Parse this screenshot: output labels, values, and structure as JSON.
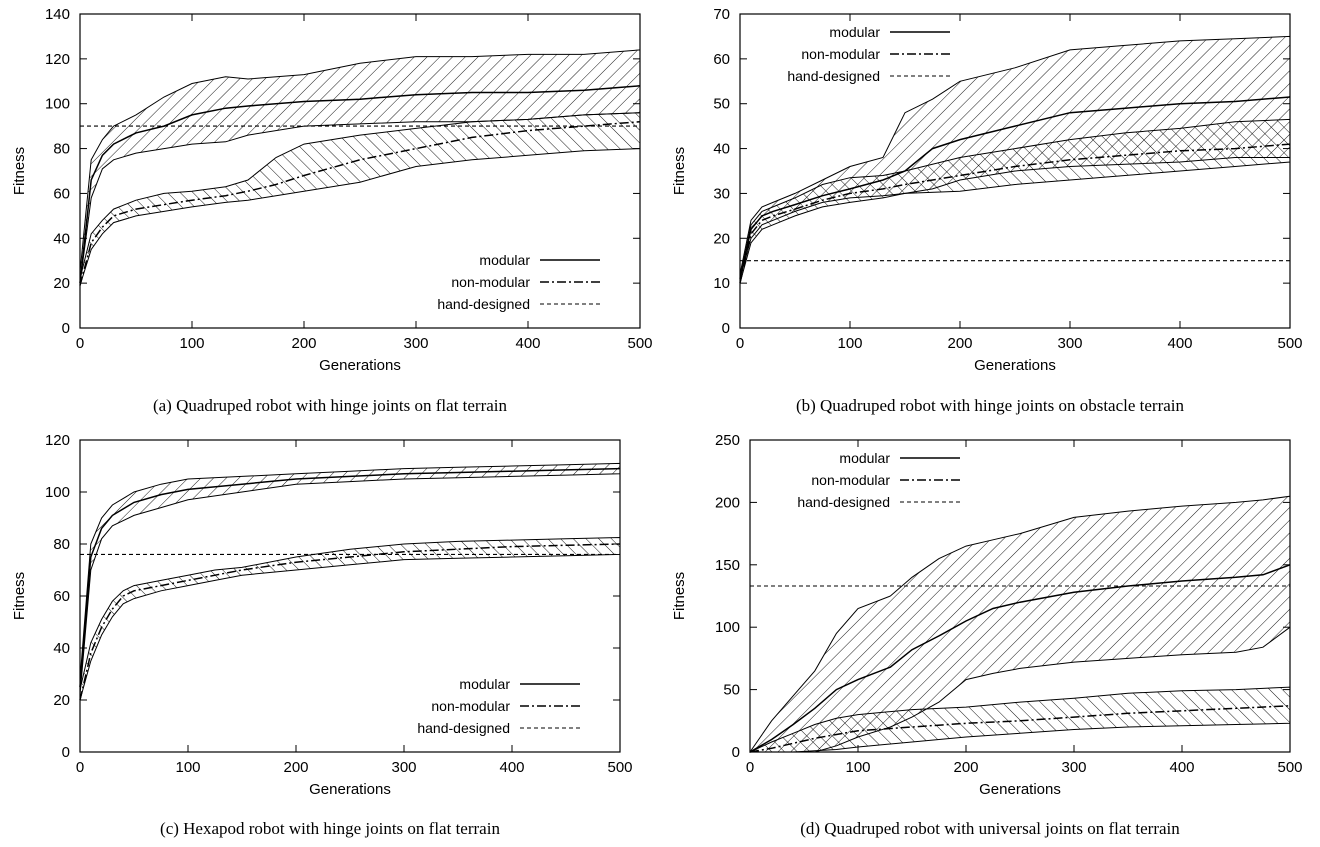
{
  "chart_data": [
    {
      "type": "line",
      "caption": "(a) Quadruped robot with hinge joints on flat terrain",
      "xlabel": "Generations",
      "ylabel": "Fitness",
      "xlim": [
        0,
        500
      ],
      "ylim": [
        0,
        140
      ],
      "xticks": [
        0,
        100,
        200,
        300,
        400,
        500
      ],
      "yticks": [
        0,
        20,
        40,
        60,
        80,
        100,
        120,
        140
      ],
      "legend_position": "bottom-right",
      "legend": [
        "modular",
        "non-modular",
        "hand-designed"
      ],
      "series": [
        {
          "name": "modular",
          "style": "solid",
          "x": [
            0,
            10,
            20,
            30,
            50,
            75,
            100,
            130,
            150,
            200,
            250,
            300,
            350,
            400,
            450,
            500
          ],
          "y": [
            20,
            66,
            77,
            82,
            87,
            90,
            95,
            98,
            99,
            101,
            102,
            104,
            105,
            105,
            106,
            108
          ],
          "lower": [
            20,
            58,
            71,
            75,
            78,
            80,
            82,
            83,
            86,
            90,
            91,
            92,
            92,
            93,
            95,
            96
          ],
          "upper": [
            25,
            75,
            84,
            90,
            95,
            103,
            109,
            112,
            111,
            113,
            118,
            121,
            121,
            122,
            122,
            124
          ]
        },
        {
          "name": "non-modular",
          "style": "dash-dot",
          "x": [
            0,
            10,
            20,
            30,
            50,
            75,
            100,
            130,
            150,
            175,
            200,
            250,
            300,
            350,
            400,
            450,
            500
          ],
          "y": [
            19,
            38,
            45,
            50,
            53,
            55,
            57,
            59,
            61,
            64,
            68,
            75,
            80,
            85,
            88,
            90,
            92
          ],
          "lower": [
            19,
            35,
            42,
            47,
            50,
            52,
            54,
            56,
            57,
            59,
            61,
            65,
            72,
            75,
            77,
            79,
            80
          ],
          "upper": [
            22,
            42,
            48,
            53,
            57,
            60,
            61,
            63,
            66,
            76,
            82,
            86,
            89,
            92,
            93,
            95,
            96
          ]
        },
        {
          "name": "hand-designed",
          "style": "dashed",
          "x": [
            0,
            500
          ],
          "y": [
            90,
            90
          ]
        }
      ]
    },
    {
      "type": "line",
      "caption": "(b) Quadruped robot with hinge joints on obstacle terrain",
      "xlabel": "Generations",
      "ylabel": "Fitness",
      "xlim": [
        0,
        500
      ],
      "ylim": [
        0,
        70
      ],
      "xticks": [
        0,
        100,
        200,
        300,
        400,
        500
      ],
      "yticks": [
        0,
        10,
        20,
        30,
        40,
        50,
        60,
        70
      ],
      "legend_position": "top-left",
      "legend": [
        "modular",
        "non-modular",
        "hand-designed"
      ],
      "series": [
        {
          "name": "modular",
          "style": "solid",
          "x": [
            0,
            10,
            20,
            30,
            50,
            75,
            100,
            130,
            150,
            175,
            200,
            250,
            300,
            350,
            400,
            450,
            500
          ],
          "y": [
            11,
            22,
            25,
            26,
            27.5,
            29.5,
            31,
            33,
            35,
            40,
            42,
            45,
            48,
            49,
            50,
            50.5,
            51.5
          ],
          "lower": [
            11,
            20,
            23,
            24,
            26,
            28,
            29,
            29.5,
            30,
            31,
            33,
            35,
            36,
            36.5,
            37,
            38,
            38
          ],
          "upper": [
            12,
            24,
            27,
            28,
            30,
            33,
            36,
            38,
            48,
            51,
            55,
            58,
            62,
            63,
            64,
            64.5,
            65
          ]
        },
        {
          "name": "non-modular",
          "style": "dash-dot",
          "x": [
            0,
            10,
            20,
            30,
            50,
            75,
            100,
            130,
            150,
            200,
            250,
            300,
            350,
            400,
            450,
            500
          ],
          "y": [
            10,
            21,
            24,
            25,
            26.5,
            28.5,
            30,
            31,
            32,
            34,
            36,
            37.5,
            38.5,
            39.5,
            40,
            41
          ],
          "lower": [
            10,
            19,
            22,
            23,
            25,
            27,
            28,
            29,
            30,
            30.5,
            32,
            33,
            34,
            35,
            36,
            37
          ],
          "upper": [
            11,
            23,
            26,
            27,
            29,
            32,
            33.5,
            34,
            35,
            38,
            40,
            42,
            43.5,
            44.5,
            46,
            46.5
          ]
        },
        {
          "name": "hand-designed",
          "style": "dashed",
          "x": [
            0,
            500
          ],
          "y": [
            15,
            15
          ]
        }
      ]
    },
    {
      "type": "line",
      "caption": "(c) Hexapod robot with hinge joints on flat terrain",
      "xlabel": "Generations",
      "ylabel": "Fitness",
      "xlim": [
        0,
        500
      ],
      "ylim": [
        0,
        120
      ],
      "xticks": [
        0,
        100,
        200,
        300,
        400,
        500
      ],
      "yticks": [
        0,
        20,
        40,
        60,
        80,
        100,
        120
      ],
      "legend_position": "bottom-right",
      "legend": [
        "modular",
        "non-modular",
        "hand-designed"
      ],
      "series": [
        {
          "name": "modular",
          "style": "solid",
          "x": [
            0,
            10,
            20,
            30,
            50,
            75,
            100,
            150,
            200,
            250,
            300,
            350,
            400,
            450,
            500
          ],
          "y": [
            25,
            75,
            86,
            91,
            96,
            99,
            101,
            103,
            105,
            106,
            107,
            107.5,
            108,
            108.5,
            109
          ],
          "lower": [
            22,
            70,
            82,
            87,
            91,
            94,
            97,
            100,
            103,
            104,
            105,
            105.5,
            106,
            106.5,
            107
          ],
          "upper": [
            28,
            80,
            90,
            95,
            100,
            103,
            105,
            106,
            107,
            108,
            109,
            109.5,
            110,
            110.5,
            111
          ]
        },
        {
          "name": "non-modular",
          "style": "dash-dot",
          "x": [
            0,
            10,
            20,
            30,
            40,
            50,
            75,
            100,
            125,
            150,
            200,
            250,
            300,
            350,
            400,
            450,
            500
          ],
          "y": [
            20,
            38,
            48,
            55,
            60,
            62,
            64,
            66,
            68,
            70,
            73,
            75,
            77,
            78,
            79,
            79.5,
            80
          ],
          "lower": [
            20,
            35,
            45,
            52,
            57,
            59,
            62,
            64,
            66,
            68,
            70,
            72,
            74,
            74.5,
            75,
            75.5,
            76
          ],
          "upper": [
            24,
            42,
            51,
            58,
            62,
            64,
            66,
            68,
            70,
            71,
            75,
            78,
            80,
            81,
            81.5,
            82,
            82.5
          ]
        },
        {
          "name": "hand-designed",
          "style": "dashed",
          "x": [
            0,
            500
          ],
          "y": [
            76,
            76
          ]
        }
      ]
    },
    {
      "type": "line",
      "caption": "(d) Quadruped robot with universal joints on flat terrain",
      "xlabel": "Generations",
      "ylabel": "Fitness",
      "xlim": [
        0,
        500
      ],
      "ylim": [
        0,
        250
      ],
      "xticks": [
        0,
        100,
        200,
        300,
        400,
        500
      ],
      "yticks": [
        0,
        50,
        100,
        150,
        200,
        250
      ],
      "legend_position": "top-left",
      "legend": [
        "modular",
        "non-modular",
        "hand-designed"
      ],
      "series": [
        {
          "name": "modular",
          "style": "solid",
          "x": [
            0,
            20,
            40,
            60,
            80,
            100,
            130,
            150,
            175,
            200,
            225,
            250,
            300,
            350,
            400,
            450,
            475,
            500
          ],
          "y": [
            0,
            10,
            22,
            35,
            50,
            58,
            68,
            82,
            93,
            105,
            115,
            120,
            128,
            133,
            137,
            140,
            142,
            150
          ],
          "lower": [
            0,
            0,
            0,
            0,
            5,
            12,
            20,
            28,
            40,
            58,
            63,
            67,
            72,
            75,
            78,
            80,
            84,
            100
          ],
          "upper": [
            0,
            25,
            45,
            65,
            95,
            115,
            125,
            140,
            155,
            165,
            170,
            175,
            188,
            193,
            197,
            200,
            202,
            205
          ]
        },
        {
          "name": "non-modular",
          "style": "dash-dot",
          "x": [
            0,
            20,
            40,
            60,
            80,
            100,
            150,
            200,
            250,
            300,
            350,
            400,
            450,
            500
          ],
          "y": [
            0,
            3,
            7,
            11,
            14,
            17,
            20,
            23,
            25,
            28,
            31,
            33,
            35,
            37
          ],
          "lower": [
            0,
            0,
            0,
            1,
            2,
            4,
            8,
            12,
            15,
            18,
            20,
            21,
            22,
            23
          ],
          "upper": [
            0,
            8,
            15,
            22,
            27,
            30,
            34,
            36,
            40,
            43,
            47,
            49,
            50,
            52
          ]
        },
        {
          "name": "hand-designed",
          "style": "dashed",
          "x": [
            0,
            500
          ],
          "y": [
            133,
            133
          ]
        }
      ]
    }
  ]
}
